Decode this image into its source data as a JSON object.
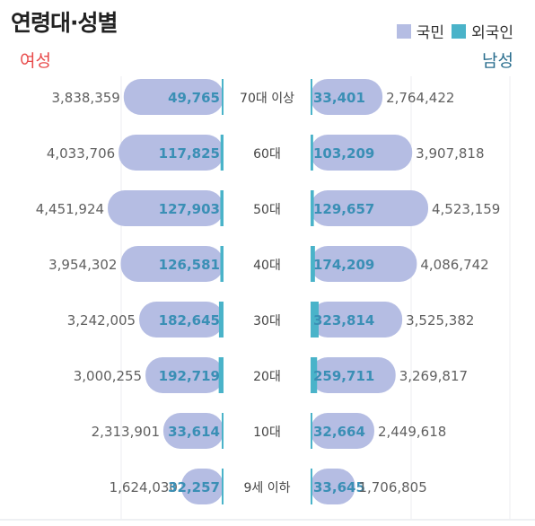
{
  "title": "연령대·성별",
  "legend": [
    {
      "label": "국민",
      "color": "#b5bde3"
    },
    {
      "label": "외국인",
      "color": "#4ab3c9"
    }
  ],
  "side_labels": {
    "female": "여성",
    "male": "남성"
  },
  "colors": {
    "citizen": "#b5bde3",
    "foreigner": "#4ab3c9",
    "citizen_text": "#606060",
    "foreigner_text": "#3a8fb5"
  },
  "chart_data": {
    "type": "bar",
    "categories": [
      "70대 이상",
      "60대",
      "50대",
      "40대",
      "30대",
      "20대",
      "10대",
      "9세 이하"
    ],
    "series": [
      {
        "name": "여성 국민",
        "values": [
          3838359,
          4033706,
          4451924,
          3954302,
          3242005,
          3000255,
          2313901,
          1624030
        ]
      },
      {
        "name": "여성 외국인",
        "values": [
          49765,
          117825,
          127903,
          126581,
          182645,
          192719,
          33614,
          32257
        ]
      },
      {
        "name": "남성 국민",
        "values": [
          2764422,
          3907818,
          4523159,
          4086742,
          3525382,
          3269817,
          2449618,
          1706805
        ]
      },
      {
        "name": "남성 외국인",
        "values": [
          33401,
          103209,
          129657,
          174209,
          323814,
          259711,
          32664,
          33645
        ]
      }
    ],
    "labels": {
      "female_citizen": [
        "3,838,359",
        "4,033,706",
        "4,451,924",
        "3,954,302",
        "3,242,005",
        "3,000,255",
        "2,313,901",
        "1,624,030"
      ],
      "female_foreign": [
        "49,765",
        "117,825",
        "127,903",
        "126,581",
        "182,645",
        "192,719",
        "33,614",
        "32,257"
      ],
      "male_citizen": [
        "2,764,422",
        "3,907,818",
        "4,523,159",
        "4,086,742",
        "3,525,382",
        "3,269,817",
        "2,449,618",
        "1,706,805"
      ],
      "male_foreign": [
        "33,401",
        "103,209",
        "129,657",
        "174,209",
        "323,814",
        "259,711",
        "32,664",
        "33,645"
      ]
    }
  }
}
